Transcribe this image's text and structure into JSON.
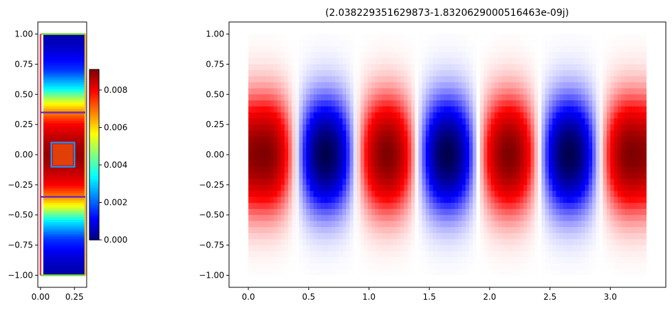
{
  "chart_data": [
    {
      "type": "heatmap",
      "title": "",
      "xlabel": "",
      "ylabel": "",
      "xlim": [
        -0.02,
        0.34
      ],
      "ylim": [
        -1.1,
        1.1
      ],
      "x_ticks": [
        "0.00",
        "0.25"
      ],
      "x_tick_values": [
        0.0,
        0.25
      ],
      "y_ticks": [
        "1.00",
        "0.75",
        "0.50",
        "0.25",
        "0.00",
        "−0.25",
        "−0.50",
        "−0.75",
        "−1.00"
      ],
      "y_tick_values": [
        1.0,
        0.75,
        0.5,
        0.25,
        0.0,
        -0.25,
        -0.5,
        -0.75,
        -1.0
      ],
      "colormap": "jet",
      "field_extent": {
        "x": [
          0.0,
          0.33
        ],
        "y": [
          -1.0,
          1.0
        ]
      },
      "field_profile_y": [
        {
          "y": -1.0,
          "v": 0.0003
        },
        {
          "y": -0.85,
          "v": 0.0008
        },
        {
          "y": -0.7,
          "v": 0.0016
        },
        {
          "y": -0.55,
          "v": 0.0033
        },
        {
          "y": -0.45,
          "v": 0.0052
        },
        {
          "y": -0.35,
          "v": 0.0068
        },
        {
          "y": -0.25,
          "v": 0.008
        },
        {
          "y": -0.1,
          "v": 0.0087
        },
        {
          "y": 0.0,
          "v": 0.0089
        },
        {
          "y": 0.1,
          "v": 0.0087
        },
        {
          "y": 0.25,
          "v": 0.008
        },
        {
          "y": 0.35,
          "v": 0.0068
        },
        {
          "y": 0.45,
          "v": 0.0052
        },
        {
          "y": 0.55,
          "v": 0.0033
        },
        {
          "y": 0.7,
          "v": 0.0016
        },
        {
          "y": 0.85,
          "v": 0.0008
        },
        {
          "y": 1.0,
          "v": 0.0003
        }
      ],
      "boundaries": [
        {
          "name": "top",
          "color": "#7fdc3c",
          "segment": [
            [
              0.0,
              1.0
            ],
            [
              0.33,
              1.0
            ]
          ]
        },
        {
          "name": "bottom",
          "color": "#7fdc3c",
          "segment": [
            [
              0.0,
              -1.0
            ],
            [
              0.33,
              -1.0
            ]
          ]
        },
        {
          "name": "left",
          "color": "#e0354a",
          "segment": [
            [
              0.0,
              -1.0
            ],
            [
              0.0,
              1.0
            ]
          ]
        },
        {
          "name": "right",
          "color": "#f4b942",
          "segment": [
            [
              0.33,
              -1.0
            ],
            [
              0.33,
              1.0
            ]
          ]
        },
        {
          "name": "interface-upper",
          "color": "#6a2fb8",
          "segment": [
            [
              0.0,
              0.35
            ],
            [
              0.33,
              0.35
            ]
          ]
        },
        {
          "name": "interface-lower",
          "color": "#6a2fb8",
          "segment": [
            [
              0.0,
              -0.35
            ],
            [
              0.33,
              -0.35
            ]
          ]
        },
        {
          "name": "inclusion",
          "color": "#2f8ce8",
          "rect": [
            0.08,
            -0.1,
            0.25,
            0.1
          ]
        }
      ],
      "colorbar": {
        "min": 0.0,
        "max": 0.0091,
        "ticks": [
          "0.000",
          "0.002",
          "0.004",
          "0.006",
          "0.008"
        ],
        "tick_values": [
          0.0,
          0.002,
          0.004,
          0.006,
          0.008
        ]
      }
    },
    {
      "type": "heatmap",
      "title": "(2.038229351629873-1.8320629000516463e-09j)",
      "xlabel": "",
      "ylabel": "",
      "xlim": [
        -0.16,
        3.46
      ],
      "ylim": [
        -1.1,
        1.1
      ],
      "x_ticks": [
        "0.0",
        "0.5",
        "1.0",
        "1.5",
        "2.0",
        "2.5",
        "3.0"
      ],
      "x_tick_values": [
        0.0,
        0.5,
        1.0,
        1.5,
        2.0,
        2.5,
        3.0
      ],
      "y_ticks": [
        "1.00",
        "0.75",
        "0.50",
        "0.25",
        "0.00",
        "−0.25",
        "−0.50",
        "−0.75",
        "−1.00"
      ],
      "y_tick_values": [
        1.0,
        0.75,
        0.5,
        0.25,
        0.0,
        -0.25,
        -0.5,
        -0.75,
        -1.0
      ],
      "colormap": "seismic",
      "field_extent": {
        "x": [
          0.0,
          3.3
        ],
        "y": [
          -1.0,
          1.0
        ]
      },
      "lobes": [
        {
          "center_x": 0.14,
          "sign": 1
        },
        {
          "center_x": 0.64,
          "sign": -1
        },
        {
          "center_x": 1.15,
          "sign": 1
        },
        {
          "center_x": 1.65,
          "sign": -1
        },
        {
          "center_x": 2.16,
          "sign": 1
        },
        {
          "center_x": 2.66,
          "sign": -1
        },
        {
          "center_x": 3.17,
          "sign": 1
        }
      ],
      "nodes_x": [
        0.395,
        0.895,
        1.4,
        1.905,
        2.41,
        2.915
      ]
    }
  ]
}
